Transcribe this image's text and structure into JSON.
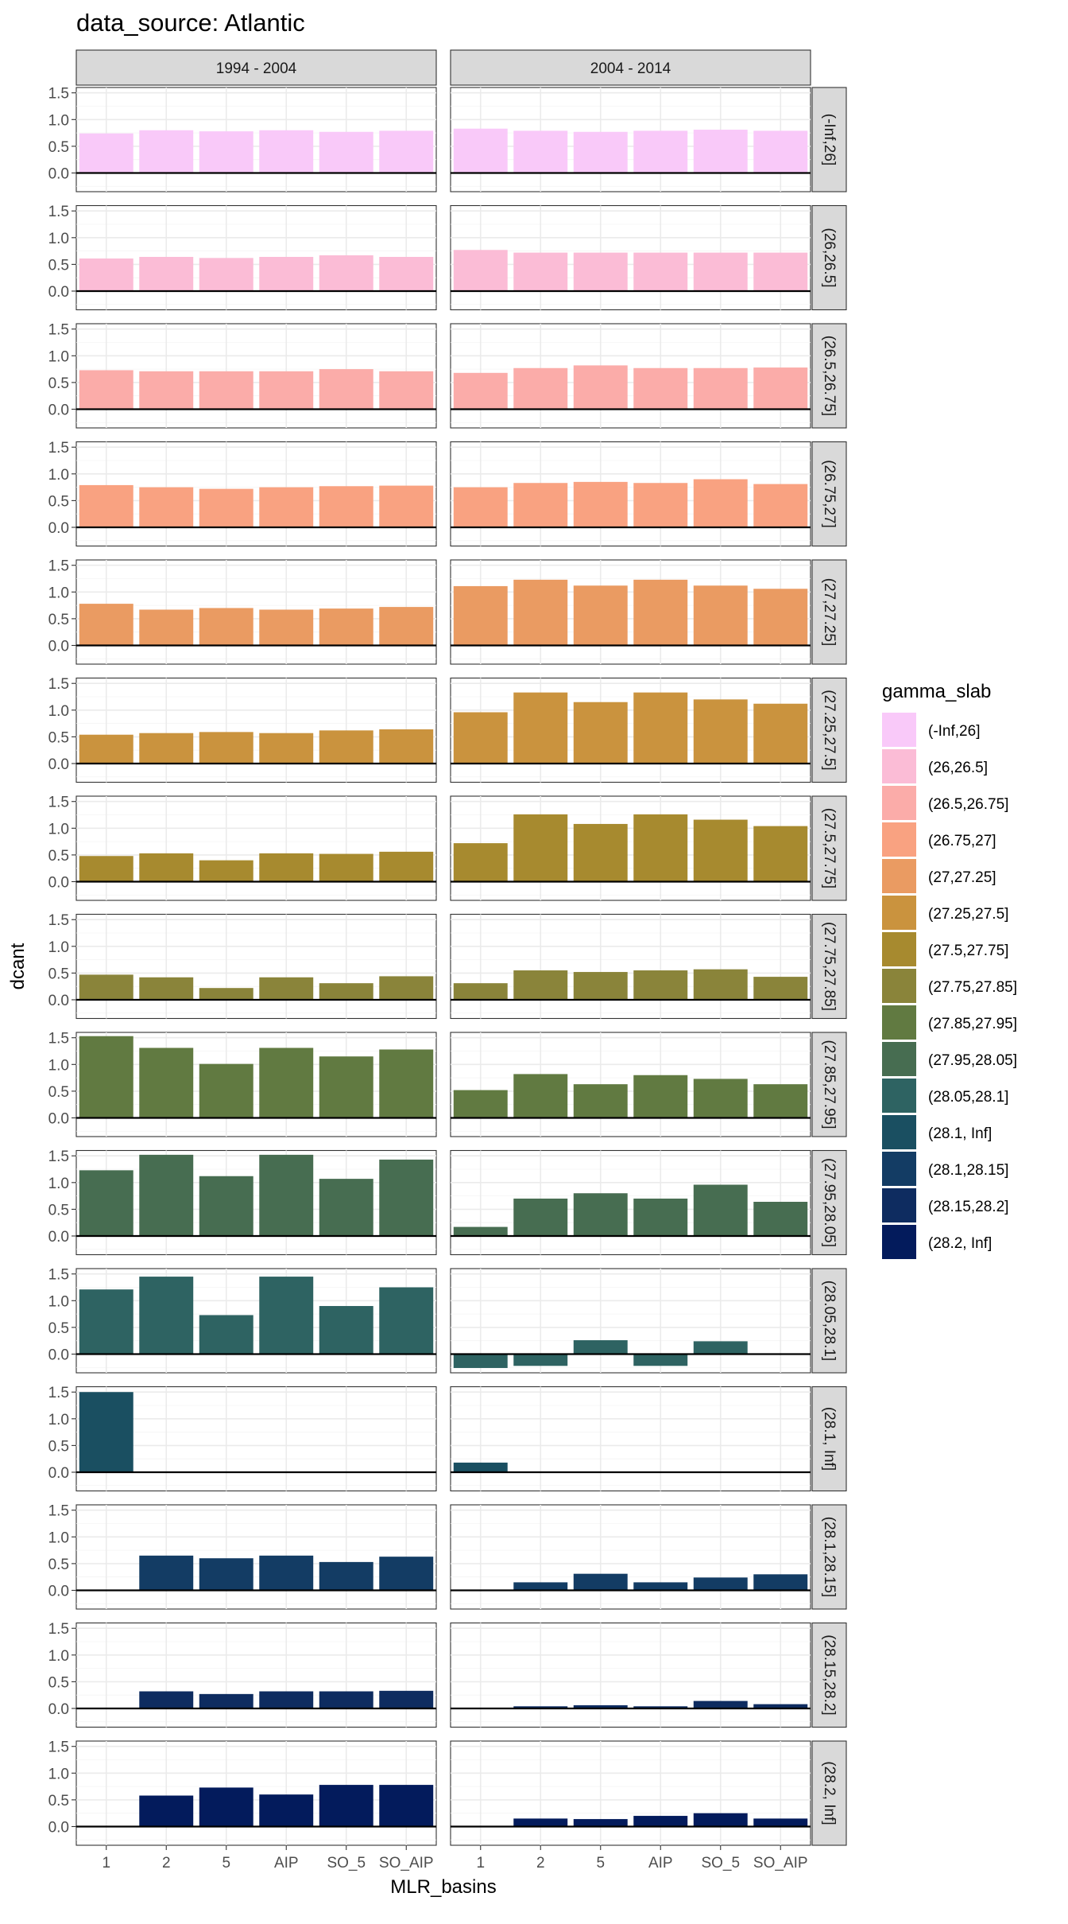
{
  "chart_data": {
    "type": "bar",
    "title": "data_source: Atlantic",
    "xlabel": "MLR_basins",
    "ylabel": "dcant",
    "ylim": [
      -0.35,
      1.6
    ],
    "yticks": [
      0.0,
      0.5,
      1.0,
      1.5
    ],
    "categories": [
      "1",
      "2",
      "5",
      "AIP",
      "SO_5",
      "SO_AIP"
    ],
    "columns": [
      "1994 - 2004",
      "2004 - 2014"
    ],
    "legend": {
      "title": "gamma_slab",
      "position": "right"
    },
    "grid": true,
    "rows": [
      {
        "label": "(-Inf,26]",
        "color": "#F9C9F9",
        "values": [
          [
            0.74,
            0.8,
            0.78,
            0.8,
            0.77,
            0.79
          ],
          [
            0.83,
            0.79,
            0.77,
            0.79,
            0.81,
            0.79
          ]
        ]
      },
      {
        "label": "(26,26.5]",
        "color": "#FBBCD6",
        "values": [
          [
            0.61,
            0.64,
            0.62,
            0.64,
            0.67,
            0.64
          ],
          [
            0.77,
            0.72,
            0.72,
            0.72,
            0.72,
            0.72
          ]
        ]
      },
      {
        "label": "(26.5,26.75]",
        "color": "#FBACA9",
        "values": [
          [
            0.73,
            0.71,
            0.71,
            0.71,
            0.75,
            0.71
          ],
          [
            0.68,
            0.77,
            0.82,
            0.77,
            0.77,
            0.78
          ]
        ]
      },
      {
        "label": "(26.75,27]",
        "color": "#F9A281",
        "values": [
          [
            0.79,
            0.75,
            0.72,
            0.75,
            0.77,
            0.78
          ],
          [
            0.75,
            0.83,
            0.85,
            0.83,
            0.9,
            0.81
          ]
        ]
      },
      {
        "label": "(27,27.25]",
        "color": "#EA9B62",
        "values": [
          [
            0.78,
            0.67,
            0.7,
            0.67,
            0.69,
            0.72
          ],
          [
            1.11,
            1.23,
            1.12,
            1.23,
            1.12,
            1.06
          ]
        ]
      },
      {
        "label": "(27.25,27.5]",
        "color": "#CA933E",
        "values": [
          [
            0.54,
            0.57,
            0.59,
            0.57,
            0.62,
            0.64
          ],
          [
            0.96,
            1.33,
            1.15,
            1.33,
            1.2,
            1.12
          ]
        ]
      },
      {
        "label": "(27.5,27.75]",
        "color": "#A78A2F",
        "values": [
          [
            0.48,
            0.53,
            0.4,
            0.53,
            0.52,
            0.56
          ],
          [
            0.72,
            1.26,
            1.08,
            1.26,
            1.16,
            1.04
          ]
        ]
      },
      {
        "label": "(27.75,27.85]",
        "color": "#8A843A",
        "values": [
          [
            0.47,
            0.42,
            0.22,
            0.42,
            0.31,
            0.44
          ],
          [
            0.31,
            0.55,
            0.52,
            0.55,
            0.57,
            0.43
          ]
        ]
      },
      {
        "label": "(27.85,27.95]",
        "color": "#617A41",
        "values": [
          [
            1.53,
            1.31,
            1.01,
            1.31,
            1.15,
            1.28
          ],
          [
            0.52,
            0.82,
            0.63,
            0.8,
            0.73,
            0.63
          ]
        ]
      },
      {
        "label": "(27.95,28.05]",
        "color": "#476D51",
        "values": [
          [
            1.23,
            1.52,
            1.12,
            1.52,
            1.07,
            1.43
          ],
          [
            0.17,
            0.7,
            0.8,
            0.7,
            0.96,
            0.64
          ]
        ]
      },
      {
        "label": "(28.05,28.1]",
        "color": "#2E6362",
        "values": [
          [
            1.21,
            1.45,
            0.73,
            1.45,
            0.9,
            1.25
          ],
          [
            -0.26,
            -0.22,
            0.26,
            -0.22,
            0.24,
            null
          ]
        ]
      },
      {
        "label": "(28.1, Inf]",
        "color": "#1A4F61",
        "values": [
          [
            1.5,
            null,
            null,
            null,
            null,
            null
          ],
          [
            0.18,
            null,
            null,
            null,
            null,
            null
          ]
        ]
      },
      {
        "label": "(28.1,28.15]",
        "color": "#133C64",
        "values": [
          [
            null,
            0.65,
            0.6,
            0.65,
            0.53,
            0.63
          ],
          [
            null,
            0.15,
            0.31,
            0.15,
            0.24,
            0.3
          ]
        ]
      },
      {
        "label": "(28.15,28.2]",
        "color": "#0E2C60",
        "values": [
          [
            null,
            0.32,
            0.27,
            0.32,
            0.32,
            0.33
          ],
          [
            null,
            0.04,
            0.06,
            0.04,
            0.14,
            0.08
          ]
        ]
      },
      {
        "label": "(28.2, Inf]",
        "color": "#031B5C",
        "values": [
          [
            null,
            0.58,
            0.73,
            0.6,
            0.78,
            0.78
          ],
          [
            null,
            0.15,
            0.14,
            0.2,
            0.25,
            0.15
          ]
        ]
      }
    ],
    "legend_entries": [
      {
        "label": "(-Inf,26]",
        "color": "#F9C9F9"
      },
      {
        "label": "(26,26.5]",
        "color": "#FBBCD6"
      },
      {
        "label": "(26.5,26.75]",
        "color": "#FBACA9"
      },
      {
        "label": "(26.75,27]",
        "color": "#F9A281"
      },
      {
        "label": "(27,27.25]",
        "color": "#EA9B62"
      },
      {
        "label": "(27.25,27.5]",
        "color": "#CA933E"
      },
      {
        "label": "(27.5,27.75]",
        "color": "#A78A2F"
      },
      {
        "label": "(27.75,27.85]",
        "color": "#8A843A"
      },
      {
        "label": "(27.85,27.95]",
        "color": "#617A41"
      },
      {
        "label": "(27.95,28.05]",
        "color": "#476D51"
      },
      {
        "label": "(28.05,28.1]",
        "color": "#2E6362"
      },
      {
        "label": "(28.1, Inf]",
        "color": "#1A4F61"
      },
      {
        "label": "(28.1,28.15]",
        "color": "#133C64"
      },
      {
        "label": "(28.15,28.2]",
        "color": "#0E2C60"
      },
      {
        "label": "(28.2, Inf]",
        "color": "#031B5C"
      }
    ]
  }
}
